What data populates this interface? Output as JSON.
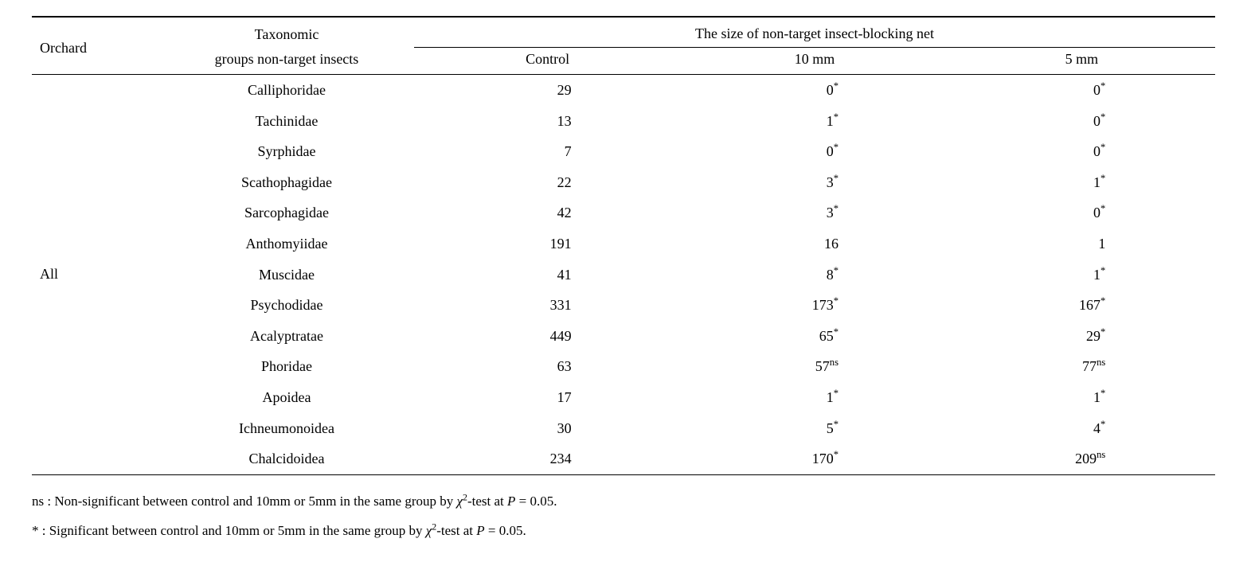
{
  "table": {
    "header": {
      "orchard_label": "Orchard",
      "taxon_line1": "Taxonomic",
      "taxon_line2": "groups non-target insects",
      "super_header": "The size of non-target insect-blocking net",
      "columns": [
        "Control",
        "10 mm",
        "5 mm"
      ]
    },
    "orchard_value": "All",
    "rows": [
      {
        "taxon": "Calliphoridae",
        "control": "29",
        "mm10": "0",
        "mm10_sup": "*",
        "mm5": "0",
        "mm5_sup": "*"
      },
      {
        "taxon": "Tachinidae",
        "control": "13",
        "mm10": "1",
        "mm10_sup": "*",
        "mm5": "0",
        "mm5_sup": "*"
      },
      {
        "taxon": "Syrphidae",
        "control": "7",
        "mm10": "0",
        "mm10_sup": "*",
        "mm5": "0",
        "mm5_sup": "*"
      },
      {
        "taxon": "Scathophagidae",
        "control": "22",
        "mm10": "3",
        "mm10_sup": "*",
        "mm5": "1",
        "mm5_sup": "*"
      },
      {
        "taxon": "Sarcophagidae",
        "control": "42",
        "mm10": "3",
        "mm10_sup": "*",
        "mm5": "0",
        "mm5_sup": "*"
      },
      {
        "taxon": "Anthomyiidae",
        "control": "191",
        "mm10": "16",
        "mm10_sup": "",
        "mm5": "1",
        "mm5_sup": ""
      },
      {
        "taxon": "Muscidae",
        "control": "41",
        "mm10": "8",
        "mm10_sup": "*",
        "mm5": "1",
        "mm5_sup": "*"
      },
      {
        "taxon": "Psychodidae",
        "control": "331",
        "mm10": "173",
        "mm10_sup": "*",
        "mm5": "167",
        "mm5_sup": "*"
      },
      {
        "taxon": "Acalyptratae",
        "control": "449",
        "mm10": "65",
        "mm10_sup": "*",
        "mm5": "29",
        "mm5_sup": "*"
      },
      {
        "taxon": "Phoridae",
        "control": "63",
        "mm10": "57",
        "mm10_sup": "ns",
        "mm5": "77",
        "mm5_sup": "ns"
      },
      {
        "taxon": "Apoidea",
        "control": "17",
        "mm10": "1",
        "mm10_sup": "*",
        "mm5": "1",
        "mm5_sup": "*"
      },
      {
        "taxon": "Ichneumonoidea",
        "control": "30",
        "mm10": "5",
        "mm10_sup": "*",
        "mm5": "4",
        "mm5_sup": "*"
      },
      {
        "taxon": "Chalcidoidea",
        "control": "234",
        "mm10": "170",
        "mm10_sup": "*",
        "mm5": "209",
        "mm5_sup": "ns"
      }
    ]
  },
  "footnotes": {
    "ns_prefix": "ns : Non-significant between control and 10mm or 5mm in the same group by ",
    "star_prefix": "* : Significant between control and 10mm or 5mm in the same group by ",
    "chi_text": "χ",
    "chi_sup": "2",
    "tail_text": "-test at ",
    "p_label": "P",
    "p_eq": " = 0.05."
  }
}
